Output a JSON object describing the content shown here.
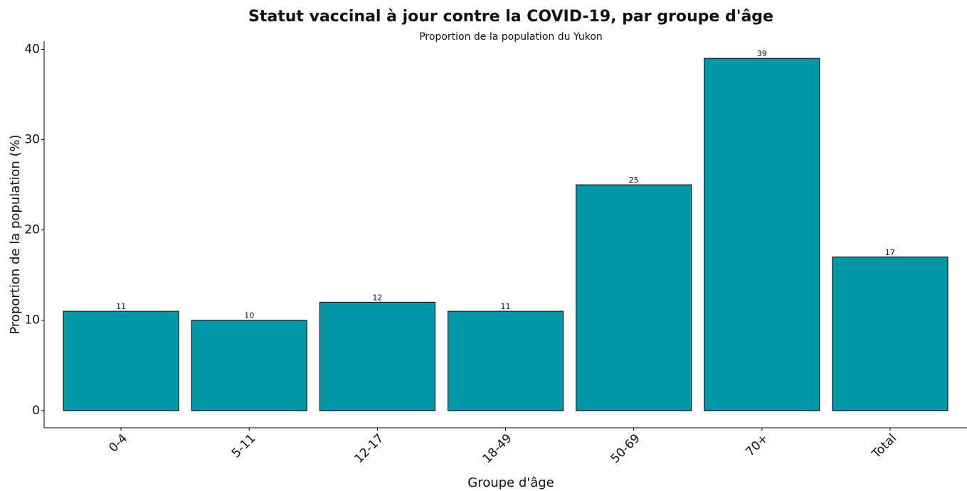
{
  "chart_data": {
    "type": "bar",
    "title": "Statut vaccinal à jour contre la COVID-19, par groupe d'âge",
    "subtitle": "Proportion de la population du Yukon",
    "x_label": "Groupe d'âge",
    "y_label": "Proportion de la population (%)",
    "categories": [
      "0-4",
      "5-11",
      "12-17",
      "18-49",
      "50-69",
      "70+",
      "Total"
    ],
    "values": [
      11,
      10,
      12,
      11,
      25,
      39,
      17
    ],
    "color": "#0097a7",
    "ylim": [
      -1.9,
      40.9
    ],
    "yticks": [
      0,
      10,
      20,
      30,
      40
    ],
    "grid": false
  }
}
